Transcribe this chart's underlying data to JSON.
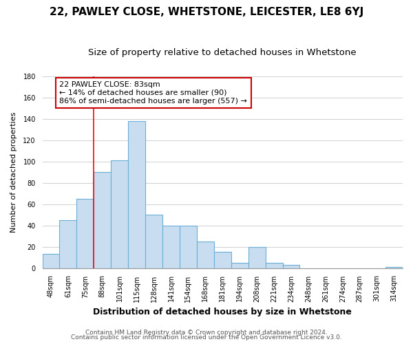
{
  "title": "22, PAWLEY CLOSE, WHETSTONE, LEICESTER, LE8 6YJ",
  "subtitle": "Size of property relative to detached houses in Whetstone",
  "xlabel": "Distribution of detached houses by size in Whetstone",
  "ylabel": "Number of detached properties",
  "footer_line1": "Contains HM Land Registry data © Crown copyright and database right 2024.",
  "footer_line2": "Contains public sector information licensed under the Open Government Licence v3.0.",
  "bin_labels": [
    "48sqm",
    "61sqm",
    "75sqm",
    "88sqm",
    "101sqm",
    "115sqm",
    "128sqm",
    "141sqm",
    "154sqm",
    "168sqm",
    "181sqm",
    "194sqm",
    "208sqm",
    "221sqm",
    "234sqm",
    "248sqm",
    "261sqm",
    "274sqm",
    "287sqm",
    "301sqm",
    "314sqm"
  ],
  "bar_heights": [
    13,
    45,
    65,
    90,
    101,
    138,
    50,
    40,
    40,
    25,
    15,
    5,
    20,
    5,
    3,
    0,
    0,
    0,
    0,
    0,
    1
  ],
  "bar_color": "#c8ddf0",
  "bar_edge_color": "#6baed6",
  "vline_x_index": 2.5,
  "annotation_text": "22 PAWLEY CLOSE: 83sqm\n← 14% of detached houses are smaller (90)\n86% of semi-detached houses are larger (557) →",
  "annotation_box_color": "#ffffff",
  "annotation_box_edge_color": "#cc0000",
  "ylim": [
    0,
    180
  ],
  "yticks": [
    0,
    20,
    40,
    60,
    80,
    100,
    120,
    140,
    160,
    180
  ],
  "grid_color": "#d0d0d0",
  "background_color": "#ffffff",
  "title_fontsize": 11,
  "subtitle_fontsize": 9.5,
  "xlabel_fontsize": 9,
  "ylabel_fontsize": 8,
  "tick_fontsize": 7,
  "annotation_fontsize": 8,
  "footer_fontsize": 6.5
}
